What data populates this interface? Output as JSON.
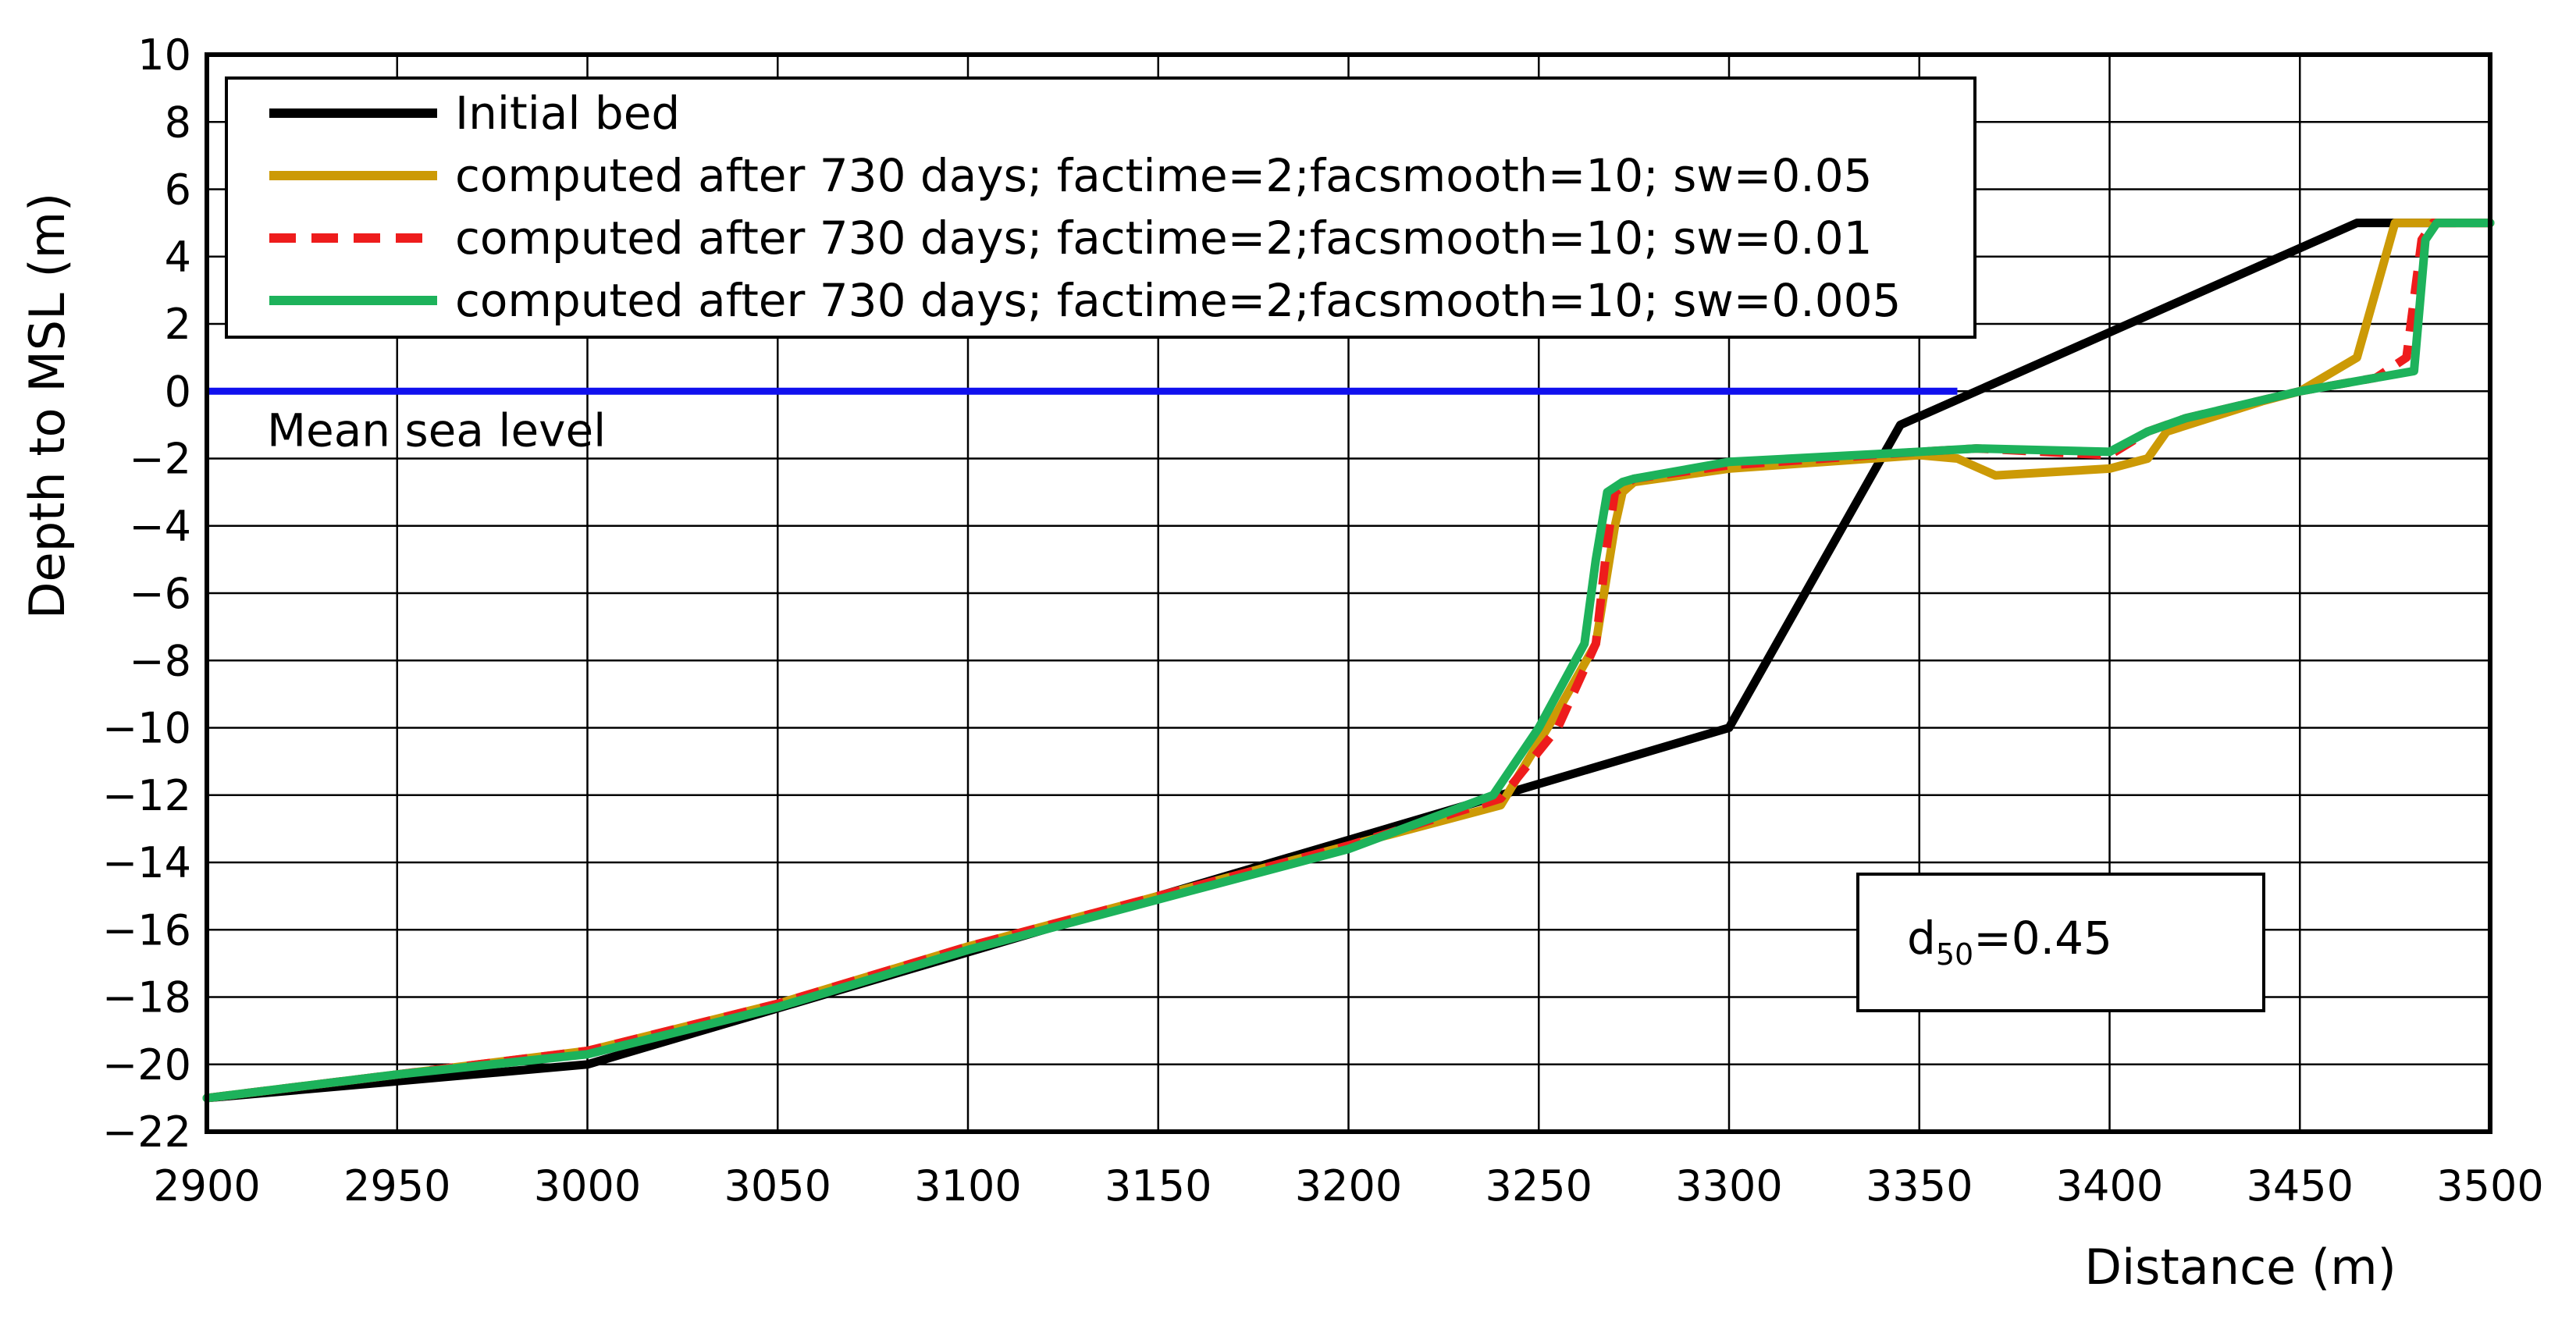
{
  "chart_data": {
    "type": "line",
    "title": "",
    "xlabel": "Distance (m)",
    "ylabel": "Depth to MSL (m)",
    "xlim": [
      2900,
      3500
    ],
    "ylim": [
      -22,
      10
    ],
    "xticks": [
      2900,
      2950,
      3000,
      3050,
      3100,
      3150,
      3200,
      3250,
      3300,
      3350,
      3400,
      3450,
      3500
    ],
    "yticks": [
      10,
      8,
      6,
      4,
      2,
      0,
      -2,
      -4,
      -6,
      -8,
      -10,
      -12,
      -14,
      -16,
      -18,
      -20,
      -22
    ],
    "xtick_labels": [
      "2900",
      "2950",
      "3000",
      "3050",
      "3100",
      "3150",
      "3200",
      "3250",
      "3300",
      "3350",
      "3400",
      "3450",
      "3500"
    ],
    "ytick_labels": [
      "10",
      "8",
      "6",
      "4",
      "2",
      "0",
      "−2",
      "−4",
      "−6",
      "−8",
      "−10",
      "−12",
      "−14",
      "−16",
      "−18",
      "−20",
      "−22"
    ],
    "grid": true,
    "legend_position": "top-left",
    "series": [
      {
        "name": "Initial bed",
        "color": "#000000",
        "dash": "solid",
        "x": [
          2900,
          2970,
          3000,
          3300,
          3345,
          3465,
          3500
        ],
        "y": [
          -21,
          -20.3,
          -20,
          -10,
          -1,
          5,
          5
        ]
      },
      {
        "name": "computed after 730 days; factime=2;facsmooth=10; sw=0.05",
        "color": "#CC9A06",
        "dash": "solid",
        "x": [
          2900,
          2950,
          3000,
          3050,
          3100,
          3150,
          3200,
          3240,
          3255,
          3265,
          3270,
          3272,
          3275,
          3300,
          3350,
          3360,
          3370,
          3400,
          3410,
          3415,
          3440,
          3450,
          3465,
          3470,
          3475,
          3500
        ],
        "y": [
          -21,
          -20.3,
          -19.6,
          -18.2,
          -16.5,
          -15,
          -13.5,
          -12.3,
          -9.5,
          -7.5,
          -4,
          -3,
          -2.7,
          -2.3,
          -1.9,
          -2,
          -2.5,
          -2.3,
          -2,
          -1.2,
          -0.3,
          0,
          1,
          3,
          5,
          5
        ]
      },
      {
        "name": "computed after 730 days; factime=2;facsmooth=10; sw=0.01",
        "color": "#EE1C1C",
        "dash": "dashed",
        "x": [
          2900,
          2950,
          3000,
          3050,
          3100,
          3150,
          3200,
          3240,
          3255,
          3265,
          3268,
          3270,
          3275,
          3300,
          3350,
          3365,
          3400,
          3410,
          3420,
          3450,
          3470,
          3478,
          3482,
          3485,
          3500
        ],
        "y": [
          -21,
          -20.3,
          -19.6,
          -18.2,
          -16.5,
          -15,
          -13.5,
          -12.1,
          -10,
          -7.5,
          -4.5,
          -3,
          -2.6,
          -2.2,
          -1.8,
          -1.7,
          -1.9,
          -1.2,
          -0.8,
          0,
          0.4,
          1,
          4.5,
          5,
          5
        ]
      },
      {
        "name": "computed after 730 days; factime=2;facsmooth=10; sw=0.005",
        "color": "#1DB25B",
        "dash": "solid",
        "x": [
          2900,
          2950,
          3000,
          3050,
          3100,
          3150,
          3200,
          3238,
          3250,
          3262,
          3265,
          3268,
          3272,
          3275,
          3300,
          3350,
          3365,
          3400,
          3410,
          3420,
          3450,
          3470,
          3480,
          3483,
          3486,
          3500
        ],
        "y": [
          -21,
          -20.3,
          -19.7,
          -18.3,
          -16.6,
          -15.1,
          -13.6,
          -12,
          -10,
          -7.5,
          -5,
          -3,
          -2.7,
          -2.6,
          -2.1,
          -1.8,
          -1.7,
          -1.8,
          -1.2,
          -0.8,
          0,
          0.4,
          0.6,
          4.5,
          5,
          5
        ]
      }
    ],
    "reference_line": {
      "label": "Mean sea level",
      "y": 0,
      "x_start": 2900,
      "x_end": 3360,
      "color": "#1010EE"
    },
    "annotation_box": {
      "prefix": "d",
      "subscript": "50",
      "suffix": "=0.45"
    }
  }
}
